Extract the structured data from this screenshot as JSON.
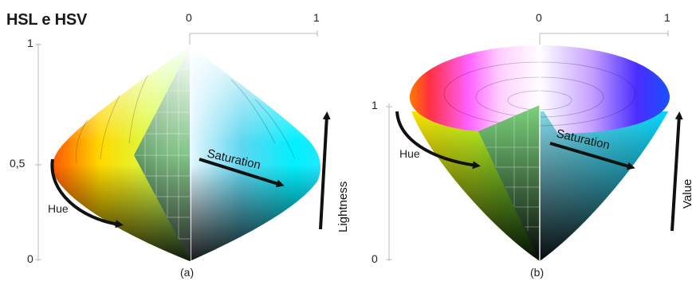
{
  "title": "HSL e HSV",
  "hsl": {
    "caption": "(a)",
    "top_axis": {
      "left": "0",
      "right": "1"
    },
    "left_axis": {
      "top": "1",
      "mid": "0,5",
      "bottom": "0"
    },
    "labels": {
      "hue": "Hue",
      "saturation": "Saturation",
      "lightness": "Lightness"
    }
  },
  "hsv": {
    "caption": "(b)",
    "top_axis": {
      "left": "0",
      "right": "1"
    },
    "left_axis": {
      "top": "1",
      "bottom": "0"
    },
    "labels": {
      "hue": "Hue",
      "saturation": "Saturation",
      "value": "Value"
    }
  },
  "colors": {
    "red": "#ff0000",
    "yellow": "#ffff00",
    "green": "#00ff00",
    "cyan": "#00ffff",
    "blue": "#0000ff",
    "magenta": "#ff00ff",
    "axis": "#bbbbbb",
    "arrow": "#111111"
  }
}
